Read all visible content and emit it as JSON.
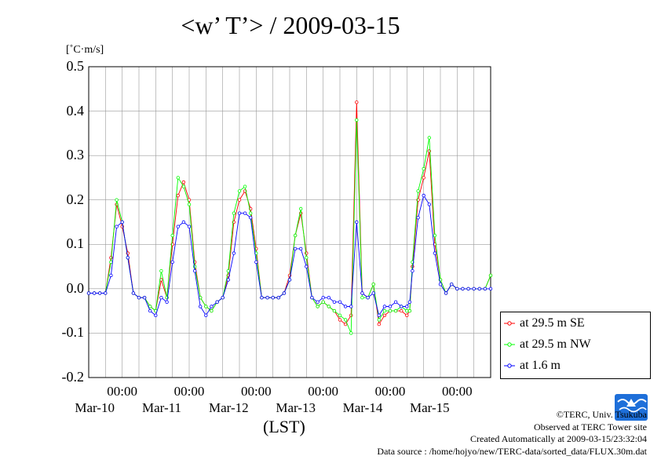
{
  "title": "<w’ T’> / 2009-03-15",
  "unit": "[˚C·m/s]",
  "xlabel": "(LST)",
  "footer": {
    "copyright": "©TERC, Univ. Tsukuba",
    "observed": "Observed at TERC Tower site",
    "created": "Created Automatically at 2009-03-15/23:32:04",
    "source": "Data source : /home/hojyo/new/TERC-data/sorted_data/FLUX.30m.dat"
  },
  "logo_text": "TERC",
  "chart_data": {
    "type": "line",
    "title": "<w’ T’> / 2009-03-15",
    "xlabel": "(LST)",
    "ylabel": "[˚C·m/s]",
    "ylim": [
      -0.2,
      0.5
    ],
    "yticks": [
      "0.5",
      "0.4",
      "0.3",
      "0.2",
      "0.1",
      "0.0",
      "-0.1",
      "-0.2"
    ],
    "ytick_values": [
      0.5,
      0.4,
      0.3,
      0.2,
      0.1,
      0.0,
      -0.1,
      -0.2
    ],
    "xlim": [
      "2009-03-09T12:00",
      "2009-03-15T12:00"
    ],
    "xticks": [
      {
        "time": "00:00",
        "date": "Mar-10"
      },
      {
        "time": "00:00",
        "date": "Mar-11"
      },
      {
        "time": "00:00",
        "date": "Mar-12"
      },
      {
        "time": "00:00",
        "date": "Mar-13"
      },
      {
        "time": "00:00",
        "date": "Mar-14"
      },
      {
        "time": "00:00",
        "date": "Mar-15"
      }
    ],
    "grid": true,
    "legend_position": "right-below",
    "series": [
      {
        "name": "at 29.5 m SE",
        "color": "#ff0000",
        "x": [
          "2009-03-09T12:00",
          "2009-03-09T14:00",
          "2009-03-09T16:00",
          "2009-03-09T18:00",
          "2009-03-09T20:00",
          "2009-03-09T22:00",
          "2009-03-10T00:00",
          "2009-03-10T02:00",
          "2009-03-10T04:00",
          "2009-03-10T06:00",
          "2009-03-10T08:00",
          "2009-03-10T10:00",
          "2009-03-10T12:00",
          "2009-03-10T14:00",
          "2009-03-10T16:00",
          "2009-03-10T18:00",
          "2009-03-10T20:00",
          "2009-03-10T22:00",
          "2009-03-11T00:00",
          "2009-03-11T02:00",
          "2009-03-11T04:00",
          "2009-03-11T06:00",
          "2009-03-11T08:00",
          "2009-03-11T10:00",
          "2009-03-11T12:00",
          "2009-03-11T14:00",
          "2009-03-11T16:00",
          "2009-03-11T18:00",
          "2009-03-11T20:00",
          "2009-03-11T22:00",
          "2009-03-12T00:00",
          "2009-03-12T02:00",
          "2009-03-12T04:00",
          "2009-03-12T06:00",
          "2009-03-12T08:00",
          "2009-03-12T10:00",
          "2009-03-12T12:00",
          "2009-03-12T14:00",
          "2009-03-12T16:00",
          "2009-03-12T18:00",
          "2009-03-12T20:00",
          "2009-03-12T22:00",
          "2009-03-13T00:00",
          "2009-03-13T02:00",
          "2009-03-13T04:00",
          "2009-03-13T06:00",
          "2009-03-13T08:00",
          "2009-03-13T10:00",
          "2009-03-13T12:00",
          "2009-03-13T14:00",
          "2009-03-13T16:00",
          "2009-03-13T18:00",
          "2009-03-13T20:00",
          "2009-03-13T22:00",
          "2009-03-14T00:00",
          "2009-03-14T02:00",
          "2009-03-14T04:00",
          "2009-03-14T06:00",
          "2009-03-14T07:00",
          "2009-03-14T08:00",
          "2009-03-14T10:00",
          "2009-03-14T12:00",
          "2009-03-14T14:00",
          "2009-03-14T16:00",
          "2009-03-14T18:00",
          "2009-03-14T20:00",
          "2009-03-14T22:00",
          "2009-03-15T00:00",
          "2009-03-15T02:00",
          "2009-03-15T04:00",
          "2009-03-15T06:00",
          "2009-03-15T08:00",
          "2009-03-15T10:00",
          "2009-03-15T12:00"
        ],
        "values": [
          -0.01,
          -0.01,
          -0.01,
          -0.01,
          0.07,
          0.19,
          0.14,
          0.08,
          -0.01,
          -0.02,
          -0.02,
          -0.04,
          -0.05,
          0.02,
          -0.02,
          0.1,
          0.21,
          0.24,
          0.2,
          0.06,
          -0.02,
          -0.04,
          -0.05,
          -0.03,
          -0.02,
          0.03,
          0.15,
          0.2,
          0.22,
          0.18,
          0.09,
          -0.02,
          -0.02,
          -0.02,
          -0.02,
          -0.01,
          0.03,
          0.12,
          0.17,
          0.08,
          -0.02,
          -0.04,
          -0.03,
          -0.04,
          -0.05,
          -0.07,
          -0.08,
          -0.06,
          0.42,
          -0.01,
          -0.02,
          0.01,
          -0.08,
          -0.06,
          -0.05,
          -0.05,
          -0.05,
          -0.06,
          -0.05,
          0.05,
          0.2,
          0.25,
          0.31,
          0.1,
          0.02,
          -0.01,
          0.01,
          0.0,
          0.0,
          0.0,
          0.0,
          0.0,
          0.0,
          0.03
        ]
      },
      {
        "name": "at 29.5 m NW",
        "color": "#00ff00",
        "x": [
          "2009-03-09T12:00",
          "2009-03-09T14:00",
          "2009-03-09T16:00",
          "2009-03-09T18:00",
          "2009-03-09T20:00",
          "2009-03-09T22:00",
          "2009-03-10T00:00",
          "2009-03-10T02:00",
          "2009-03-10T04:00",
          "2009-03-10T06:00",
          "2009-03-10T08:00",
          "2009-03-10T10:00",
          "2009-03-10T12:00",
          "2009-03-10T14:00",
          "2009-03-10T16:00",
          "2009-03-10T18:00",
          "2009-03-10T20:00",
          "2009-03-10T22:00",
          "2009-03-11T00:00",
          "2009-03-11T02:00",
          "2009-03-11T04:00",
          "2009-03-11T06:00",
          "2009-03-11T08:00",
          "2009-03-11T10:00",
          "2009-03-11T12:00",
          "2009-03-11T14:00",
          "2009-03-11T16:00",
          "2009-03-11T18:00",
          "2009-03-11T20:00",
          "2009-03-11T22:00",
          "2009-03-12T00:00",
          "2009-03-12T02:00",
          "2009-03-12T04:00",
          "2009-03-12T06:00",
          "2009-03-12T08:00",
          "2009-03-12T10:00",
          "2009-03-12T12:00",
          "2009-03-12T14:00",
          "2009-03-12T16:00",
          "2009-03-12T18:00",
          "2009-03-12T20:00",
          "2009-03-12T22:00",
          "2009-03-13T00:00",
          "2009-03-13T02:00",
          "2009-03-13T04:00",
          "2009-03-13T06:00",
          "2009-03-13T08:00",
          "2009-03-13T10:00",
          "2009-03-13T12:00",
          "2009-03-13T14:00",
          "2009-03-13T16:00",
          "2009-03-13T18:00",
          "2009-03-13T20:00",
          "2009-03-13T22:00",
          "2009-03-14T00:00",
          "2009-03-14T02:00",
          "2009-03-14T04:00",
          "2009-03-14T06:00",
          "2009-03-14T07:00",
          "2009-03-14T08:00",
          "2009-03-14T10:00",
          "2009-03-14T12:00",
          "2009-03-14T14:00",
          "2009-03-14T16:00",
          "2009-03-14T18:00",
          "2009-03-14T20:00",
          "2009-03-14T22:00",
          "2009-03-15T00:00",
          "2009-03-15T02:00",
          "2009-03-15T04:00",
          "2009-03-15T06:00",
          "2009-03-15T08:00",
          "2009-03-15T10:00",
          "2009-03-15T12:00"
        ],
        "values": [
          -0.01,
          -0.01,
          -0.01,
          -0.01,
          0.06,
          0.2,
          0.15,
          0.07,
          -0.01,
          -0.02,
          -0.02,
          -0.04,
          -0.05,
          0.04,
          -0.02,
          0.12,
          0.25,
          0.23,
          0.19,
          0.05,
          -0.02,
          -0.04,
          -0.05,
          -0.03,
          -0.02,
          0.04,
          0.17,
          0.22,
          0.23,
          0.17,
          0.08,
          -0.02,
          -0.02,
          -0.02,
          -0.02,
          -0.01,
          0.02,
          0.12,
          0.18,
          0.07,
          -0.02,
          -0.04,
          -0.03,
          -0.04,
          -0.05,
          -0.06,
          -0.07,
          -0.1,
          0.38,
          -0.02,
          -0.02,
          0.01,
          -0.07,
          -0.05,
          -0.05,
          -0.05,
          -0.04,
          -0.05,
          -0.05,
          0.06,
          0.22,
          0.27,
          0.34,
          0.12,
          0.02,
          -0.01,
          0.01,
          0.0,
          0.0,
          0.0,
          0.0,
          0.0,
          0.0,
          0.03
        ]
      },
      {
        "name": "at 1.6 m",
        "color": "#0000ff",
        "x": [
          "2009-03-09T12:00",
          "2009-03-09T14:00",
          "2009-03-09T16:00",
          "2009-03-09T18:00",
          "2009-03-09T20:00",
          "2009-03-09T22:00",
          "2009-03-10T00:00",
          "2009-03-10T02:00",
          "2009-03-10T04:00",
          "2009-03-10T06:00",
          "2009-03-10T08:00",
          "2009-03-10T10:00",
          "2009-03-10T12:00",
          "2009-03-10T14:00",
          "2009-03-10T16:00",
          "2009-03-10T18:00",
          "2009-03-10T20:00",
          "2009-03-10T22:00",
          "2009-03-11T00:00",
          "2009-03-11T02:00",
          "2009-03-11T04:00",
          "2009-03-11T06:00",
          "2009-03-11T08:00",
          "2009-03-11T10:00",
          "2009-03-11T12:00",
          "2009-03-11T14:00",
          "2009-03-11T16:00",
          "2009-03-11T18:00",
          "2009-03-11T20:00",
          "2009-03-11T22:00",
          "2009-03-12T00:00",
          "2009-03-12T02:00",
          "2009-03-12T04:00",
          "2009-03-12T06:00",
          "2009-03-12T08:00",
          "2009-03-12T10:00",
          "2009-03-12T12:00",
          "2009-03-12T14:00",
          "2009-03-12T16:00",
          "2009-03-12T18:00",
          "2009-03-12T20:00",
          "2009-03-12T22:00",
          "2009-03-13T00:00",
          "2009-03-13T02:00",
          "2009-03-13T04:00",
          "2009-03-13T06:00",
          "2009-03-13T08:00",
          "2009-03-13T10:00",
          "2009-03-13T12:00",
          "2009-03-13T14:00",
          "2009-03-13T16:00",
          "2009-03-13T18:00",
          "2009-03-13T20:00",
          "2009-03-13T22:00",
          "2009-03-14T00:00",
          "2009-03-14T02:00",
          "2009-03-14T04:00",
          "2009-03-14T06:00",
          "2009-03-14T07:00",
          "2009-03-14T08:00",
          "2009-03-14T10:00",
          "2009-03-14T12:00",
          "2009-03-14T14:00",
          "2009-03-14T16:00",
          "2009-03-14T18:00",
          "2009-03-14T20:00",
          "2009-03-14T22:00",
          "2009-03-15T00:00",
          "2009-03-15T02:00",
          "2009-03-15T04:00",
          "2009-03-15T06:00",
          "2009-03-15T08:00",
          "2009-03-15T10:00",
          "2009-03-15T12:00"
        ],
        "values": [
          -0.01,
          -0.01,
          -0.01,
          -0.01,
          0.03,
          0.14,
          0.15,
          0.07,
          -0.01,
          -0.02,
          -0.02,
          -0.05,
          -0.06,
          -0.02,
          -0.03,
          0.06,
          0.14,
          0.15,
          0.14,
          0.04,
          -0.04,
          -0.06,
          -0.04,
          -0.03,
          -0.02,
          0.02,
          0.08,
          0.17,
          0.17,
          0.16,
          0.06,
          -0.02,
          -0.02,
          -0.02,
          -0.02,
          -0.01,
          0.02,
          0.09,
          0.09,
          0.05,
          -0.02,
          -0.03,
          -0.02,
          -0.02,
          -0.03,
          -0.03,
          -0.04,
          -0.04,
          0.15,
          -0.01,
          -0.02,
          -0.01,
          -0.06,
          -0.04,
          -0.04,
          -0.03,
          -0.04,
          -0.04,
          -0.03,
          0.04,
          0.16,
          0.21,
          0.19,
          0.08,
          0.01,
          -0.01,
          0.01,
          0.0,
          0.0,
          0.0,
          0.0,
          0.0,
          0.0,
          0.0
        ]
      }
    ]
  }
}
